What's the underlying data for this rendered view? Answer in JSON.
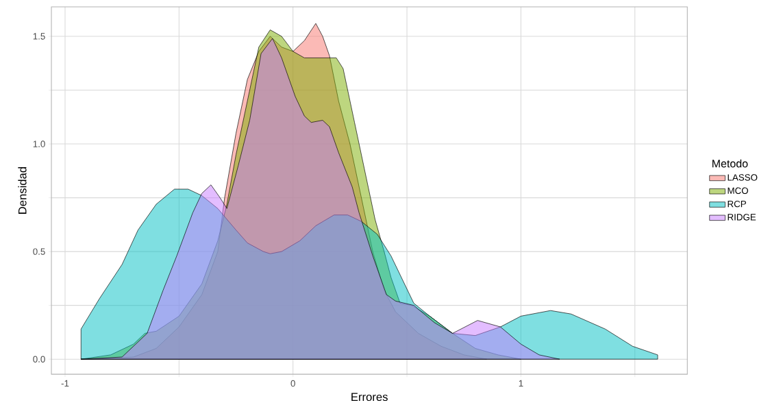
{
  "chart_data": {
    "type": "area",
    "xlabel": "Errores",
    "ylabel": "Densidad",
    "legend_title": "Metodo",
    "xlim": [
      -1.06,
      1.73
    ],
    "ylim": [
      -0.07,
      1.637
    ],
    "xticks": [
      -1,
      {
        "value": -0.5,
        "label": null
      },
      0,
      {
        "value": 0.5,
        "label": null
      },
      1,
      {
        "value": 1.5,
        "label": null
      }
    ],
    "yticks": [
      {
        "value": 0,
        "label": "0.0"
      },
      {
        "value": 0.25,
        "label": null
      },
      {
        "value": 0.5,
        "label": "0.5"
      },
      {
        "value": 0.75,
        "label": null
      },
      {
        "value": 1,
        "label": "1.0"
      },
      {
        "value": 1.25,
        "label": null
      },
      {
        "value": 1.5,
        "label": "1.5"
      }
    ],
    "grid": true,
    "legend": "right",
    "series": [
      {
        "name": "LASSO",
        "color": "#f8766d",
        "x": [
          -0.93,
          -0.7,
          -0.6,
          -0.5,
          -0.4,
          -0.33,
          -0.3,
          -0.25,
          -0.2,
          -0.15,
          -0.1,
          -0.05,
          0.0,
          0.05,
          0.1,
          0.13,
          0.16,
          0.2,
          0.25,
          0.3,
          0.35,
          0.4,
          0.45,
          0.55,
          0.65,
          0.75,
          0.85
        ],
        "values": [
          0,
          0.01,
          0.05,
          0.15,
          0.3,
          0.5,
          0.75,
          1.05,
          1.3,
          1.43,
          1.5,
          1.45,
          1.43,
          1.48,
          1.56,
          1.5,
          1.41,
          1.2,
          1.0,
          0.75,
          0.5,
          0.32,
          0.22,
          0.12,
          0.06,
          0.02,
          0
        ]
      },
      {
        "name": "MCO",
        "color": "#7cae00",
        "x": [
          -0.93,
          -0.8,
          -0.7,
          -0.65,
          -0.6,
          -0.5,
          -0.4,
          -0.33,
          -0.29,
          -0.25,
          -0.2,
          -0.15,
          -0.1,
          -0.05,
          0.0,
          0.05,
          0.1,
          0.19,
          0.22,
          0.27,
          0.32,
          0.36,
          0.4,
          0.43,
          0.47,
          0.52,
          0.6,
          0.7,
          0.8,
          0.9,
          1.0
        ],
        "values": [
          0,
          0.02,
          0.07,
          0.12,
          0.13,
          0.2,
          0.35,
          0.55,
          0.72,
          0.95,
          1.2,
          1.45,
          1.53,
          1.5,
          1.43,
          1.4,
          1.4,
          1.4,
          1.35,
          1.1,
          0.85,
          0.65,
          0.5,
          0.38,
          0.26,
          0.25,
          0.2,
          0.12,
          0.05,
          0.02,
          0
        ]
      },
      {
        "name": "RCP",
        "color": "#00bfc4",
        "x": [
          -0.93,
          -0.85,
          -0.75,
          -0.68,
          -0.6,
          -0.52,
          -0.46,
          -0.4,
          -0.33,
          -0.25,
          -0.2,
          -0.13,
          -0.1,
          -0.05,
          0.03,
          0.1,
          0.18,
          0.24,
          0.3,
          0.37,
          0.43,
          0.53,
          0.6,
          0.7,
          0.8,
          0.91,
          1.0,
          1.13,
          1.22,
          1.37,
          1.49,
          1.6
        ],
        "values": [
          0.14,
          0.28,
          0.44,
          0.6,
          0.72,
          0.79,
          0.79,
          0.76,
          0.7,
          0.6,
          0.54,
          0.5,
          0.49,
          0.5,
          0.55,
          0.62,
          0.67,
          0.67,
          0.64,
          0.58,
          0.48,
          0.26,
          0.2,
          0.12,
          0.11,
          0.15,
          0.2,
          0.226,
          0.21,
          0.14,
          0.06,
          0.02
        ]
      },
      {
        "name": "RIDGE",
        "color": "#c77cff",
        "x": [
          -0.93,
          -0.75,
          -0.64,
          -0.57,
          -0.51,
          -0.44,
          -0.4,
          -0.36,
          -0.32,
          -0.29,
          -0.24,
          -0.19,
          -0.14,
          -0.09,
          -0.05,
          0.01,
          0.05,
          0.08,
          0.13,
          0.16,
          0.2,
          0.26,
          0.29,
          0.35,
          0.41,
          0.45,
          0.53,
          0.62,
          0.7,
          0.81,
          0.91,
          1.0,
          1.08,
          1.17
        ],
        "values": [
          0,
          0.01,
          0.12,
          0.32,
          0.48,
          0.68,
          0.77,
          0.81,
          0.75,
          0.7,
          0.9,
          1.11,
          1.42,
          1.49,
          1.4,
          1.22,
          1.13,
          1.1,
          1.11,
          1.08,
          0.96,
          0.8,
          0.68,
          0.48,
          0.3,
          0.27,
          0.25,
          0.17,
          0.12,
          0.18,
          0.15,
          0.07,
          0.02,
          0
        ]
      }
    ]
  }
}
